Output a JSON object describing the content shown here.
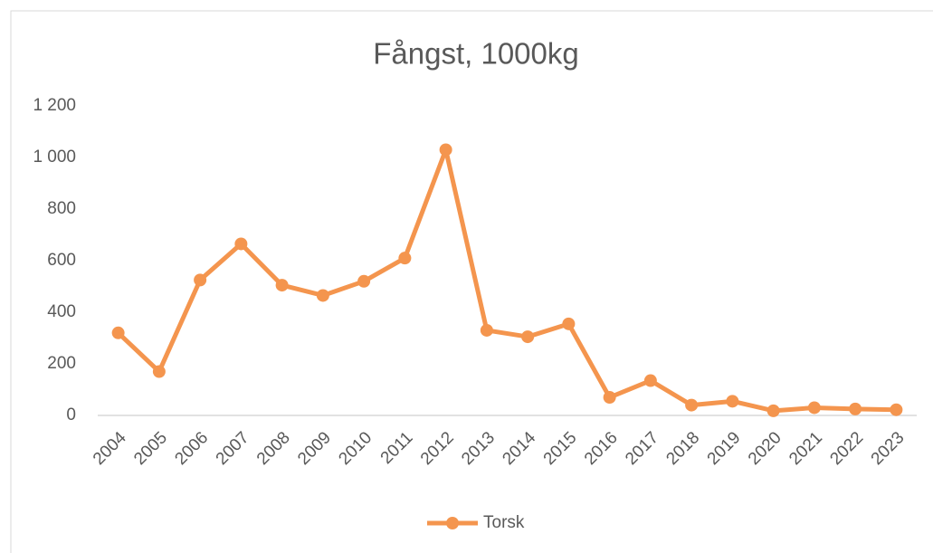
{
  "chart_data": {
    "type": "line",
    "title": "Fångst, 1000kg",
    "categories": [
      "2004",
      "2005",
      "2006",
      "2007",
      "2008",
      "2009",
      "2010",
      "2011",
      "2012",
      "2013",
      "2014",
      "2015",
      "2016",
      "2017",
      "2018",
      "2019",
      "2020",
      "2021",
      "2022",
      "2023"
    ],
    "series": [
      {
        "name": "Torsk",
        "color": "#f4954e",
        "values": [
          320,
          170,
          525,
          665,
          505,
          465,
          520,
          610,
          1030,
          330,
          305,
          355,
          70,
          135,
          40,
          55,
          18,
          30,
          25,
          22
        ]
      }
    ],
    "ylim": [
      0,
      1200
    ],
    "yticks": [
      0,
      200,
      400,
      600,
      800,
      {
        "value": 1000,
        "label": "1 000"
      },
      {
        "value": 1200,
        "label": "1 200"
      }
    ],
    "grid": false,
    "legend": "bottom"
  }
}
